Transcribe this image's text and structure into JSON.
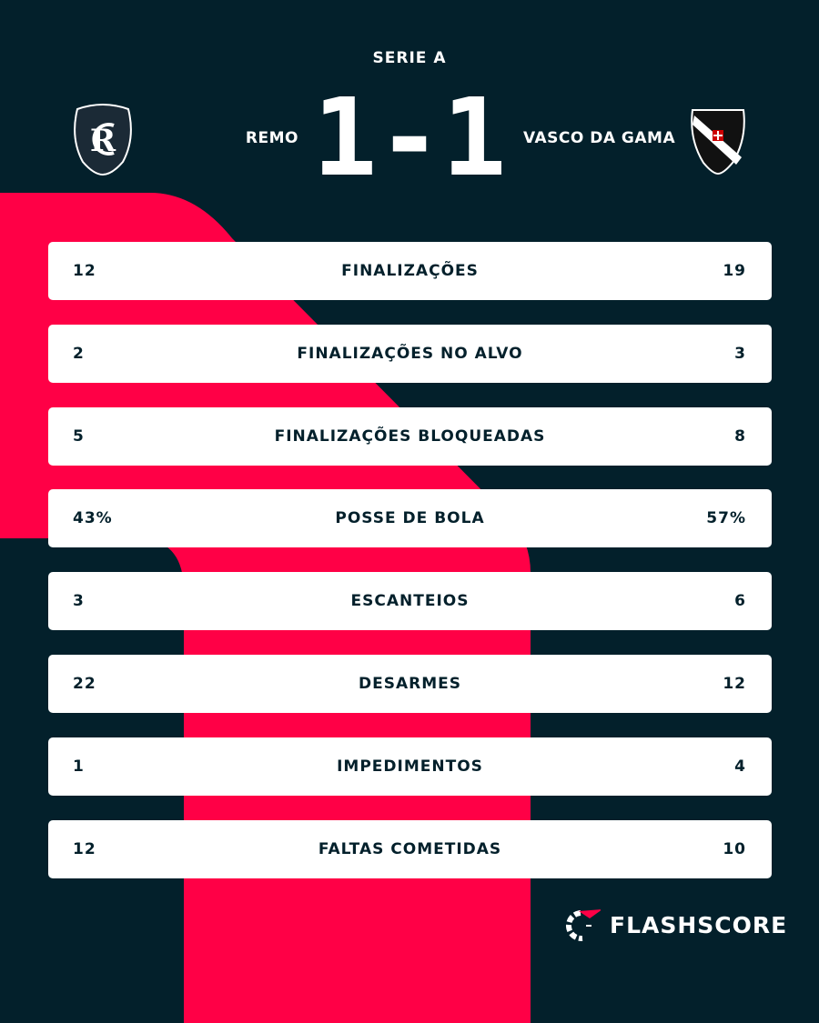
{
  "league": "SERIE A",
  "home": {
    "name": "REMO",
    "score": "1"
  },
  "away": {
    "name": "VASCO DA GAMA",
    "score": "1"
  },
  "score_separator": "-",
  "stats": [
    {
      "label": "FINALIZAÇÕES",
      "home": "12",
      "away": "19"
    },
    {
      "label": "FINALIZAÇÕES NO ALVO",
      "home": "2",
      "away": "3"
    },
    {
      "label": "FINALIZAÇÕES BLOQUEADAS",
      "home": "5",
      "away": "8"
    },
    {
      "label": "POSSE DE BOLA",
      "home": "43%",
      "away": "57%"
    },
    {
      "label": "ESCANTEIOS",
      "home": "3",
      "away": "6"
    },
    {
      "label": "DESARMES",
      "home": "22",
      "away": "12"
    },
    {
      "label": "IMPEDIMENTOS",
      "home": "1",
      "away": "4"
    },
    {
      "label": "FALTAS COMETIDAS",
      "home": "12",
      "away": "10"
    }
  ],
  "brand": "FLASHSCORE",
  "colors": {
    "background": "#03202b",
    "accent": "#ff0046"
  }
}
